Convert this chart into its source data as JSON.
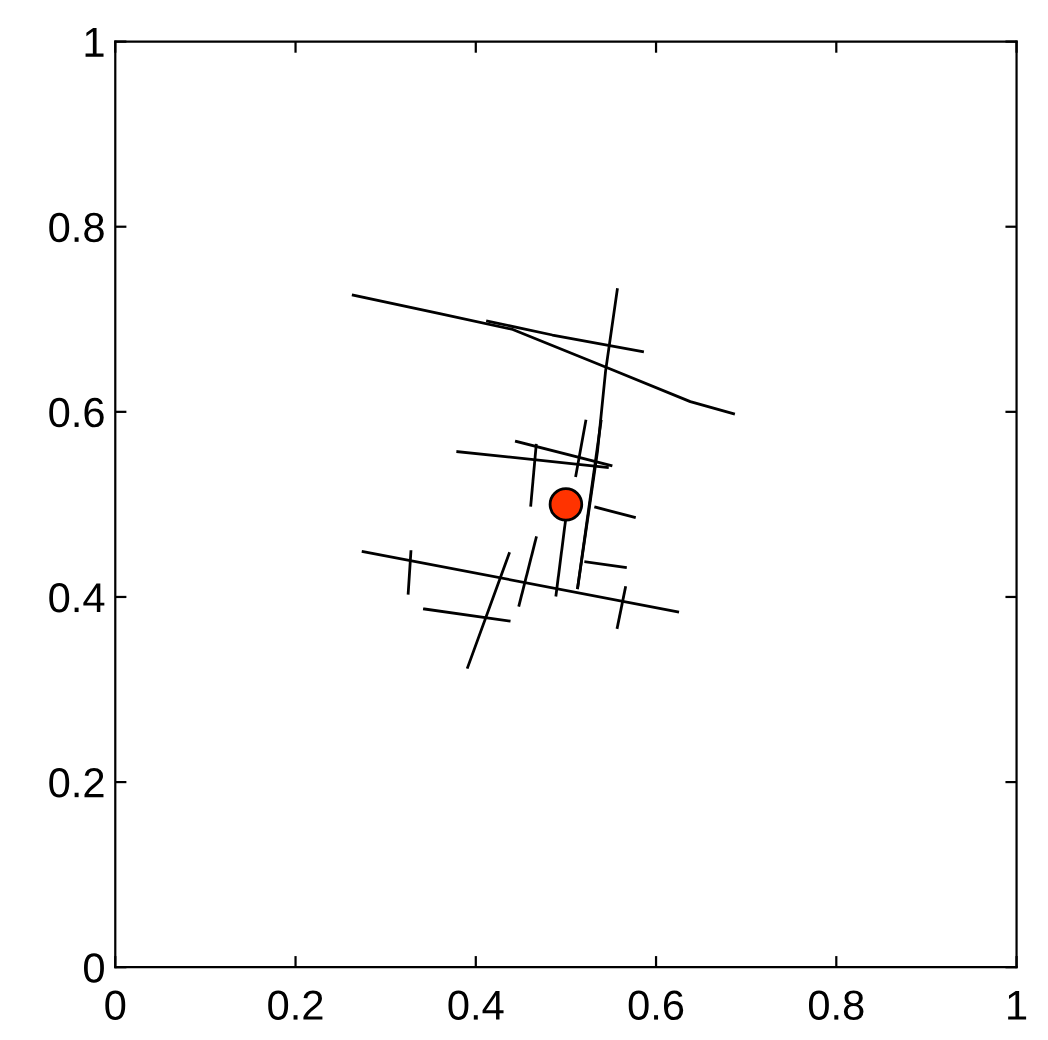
{
  "chart_data": {
    "type": "line",
    "xlim": [
      0,
      1
    ],
    "ylim": [
      0,
      1
    ],
    "xticks": [
      0,
      0.2,
      0.4,
      0.6,
      0.8,
      1
    ],
    "yticks": [
      0,
      0.2,
      0.4,
      0.6,
      0.8,
      1
    ],
    "grid": false,
    "legend": false,
    "series": [
      {
        "color": "#000000",
        "x": [
          0.264,
          0.36,
          0.441,
          0.55,
          0.638,
          0.686
        ],
        "values": [
          0.726,
          0.706,
          0.689,
          0.646,
          0.611,
          0.598
        ]
      },
      {
        "color": "#000000",
        "x": [
          0.413,
          0.485,
          0.585
        ],
        "values": [
          0.698,
          0.683,
          0.665
        ]
      },
      {
        "color": "#000000",
        "x": [
          0.557,
          0.544,
          0.535,
          0.528,
          0.513
        ],
        "values": [
          0.732,
          0.644,
          0.557,
          0.51,
          0.41
        ]
      },
      {
        "color": "#000000",
        "x": [
          0.38,
          0.546
        ],
        "values": [
          0.557,
          0.54
        ]
      },
      {
        "color": "#000000",
        "x": [
          0.445,
          0.55
        ],
        "values": [
          0.568,
          0.542
        ]
      },
      {
        "color": "#000000",
        "x": [
          0.467,
          0.461
        ],
        "values": [
          0.564,
          0.499
        ]
      },
      {
        "color": "#000000",
        "x": [
          0.533,
          0.576
        ],
        "values": [
          0.497,
          0.486
        ]
      },
      {
        "color": "#000000",
        "x": [
          0.275,
          0.624
        ],
        "values": [
          0.449,
          0.384
        ]
      },
      {
        "color": "#000000",
        "x": [
          0.328,
          0.325
        ],
        "values": [
          0.449,
          0.404
        ]
      },
      {
        "color": "#000000",
        "x": [
          0.343,
          0.437
        ],
        "values": [
          0.387,
          0.374
        ]
      },
      {
        "color": "#000000",
        "x": [
          0.437,
          0.391
        ],
        "values": [
          0.447,
          0.324
        ]
      },
      {
        "color": "#000000",
        "x": [
          0.467,
          0.448
        ],
        "values": [
          0.464,
          0.391
        ]
      },
      {
        "color": "#000000",
        "x": [
          0.5,
          0.489
        ],
        "values": [
          0.486,
          0.402
        ]
      },
      {
        "color": "#000000",
        "x": [
          0.522,
          0.566
        ],
        "values": [
          0.438,
          0.432
        ]
      },
      {
        "color": "#000000",
        "x": [
          0.539,
          0.513
        ],
        "values": [
          0.59,
          0.41
        ]
      },
      {
        "color": "#000000",
        "x": [
          0.566,
          0.557
        ],
        "values": [
          0.41,
          0.367
        ]
      },
      {
        "color": "#000000",
        "x": [
          0.522,
          0.511
        ],
        "values": [
          0.59,
          0.531
        ]
      },
      {
        "type": "scatter",
        "marker": "circle",
        "color": "#ff3300",
        "x": [
          0.5
        ],
        "values": [
          0.5
        ]
      }
    ]
  }
}
